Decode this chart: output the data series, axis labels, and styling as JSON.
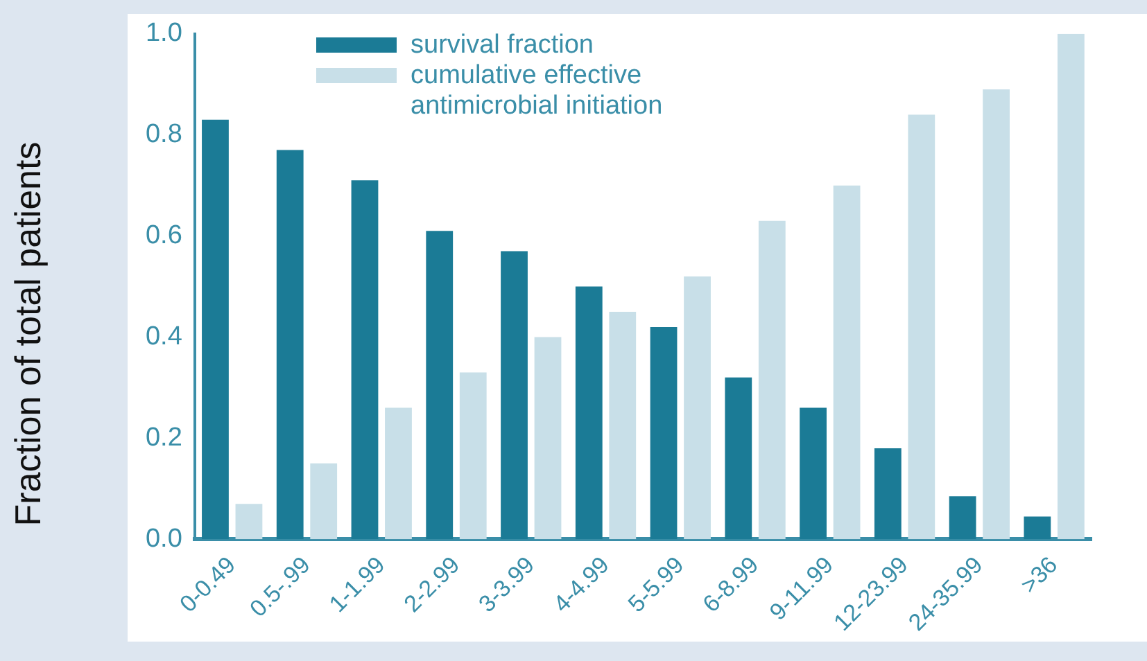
{
  "chart_data": {
    "type": "bar",
    "ylabel": "Fraction of total patients",
    "categories": [
      "0-0.49",
      "0.5-.99",
      "1-1.99",
      "2-2.99",
      "3-3.99",
      "4-4.99",
      "5-5.99",
      "6-8.99",
      "9-11.99",
      "12-23.99",
      "24-35.99",
      ">36"
    ],
    "series": [
      {
        "name": "survival fraction",
        "color": "#1b7b96",
        "values": [
          0.83,
          0.77,
          0.71,
          0.61,
          0.57,
          0.5,
          0.42,
          0.32,
          0.26,
          0.18,
          0.085,
          0.045
        ]
      },
      {
        "name": "cumulative effective\n antimicrobial initiation",
        "color": "#c8dfe8",
        "values": [
          0.07,
          0.15,
          0.26,
          0.33,
          0.4,
          0.45,
          0.52,
          0.63,
          0.7,
          0.84,
          0.89,
          1.0
        ]
      }
    ],
    "ylim": [
      0,
      1
    ],
    "yticks": [
      {
        "value": 0,
        "label": "0.0"
      },
      {
        "value": 0.2,
        "label": "0.2"
      },
      {
        "value": 0.4,
        "label": "0.4"
      },
      {
        "value": 0.6,
        "label": "0.6"
      },
      {
        "value": 0.8,
        "label": "0.8"
      },
      {
        "value": 1,
        "label": "1.0"
      }
    ],
    "grid": false,
    "legend": "top left"
  }
}
